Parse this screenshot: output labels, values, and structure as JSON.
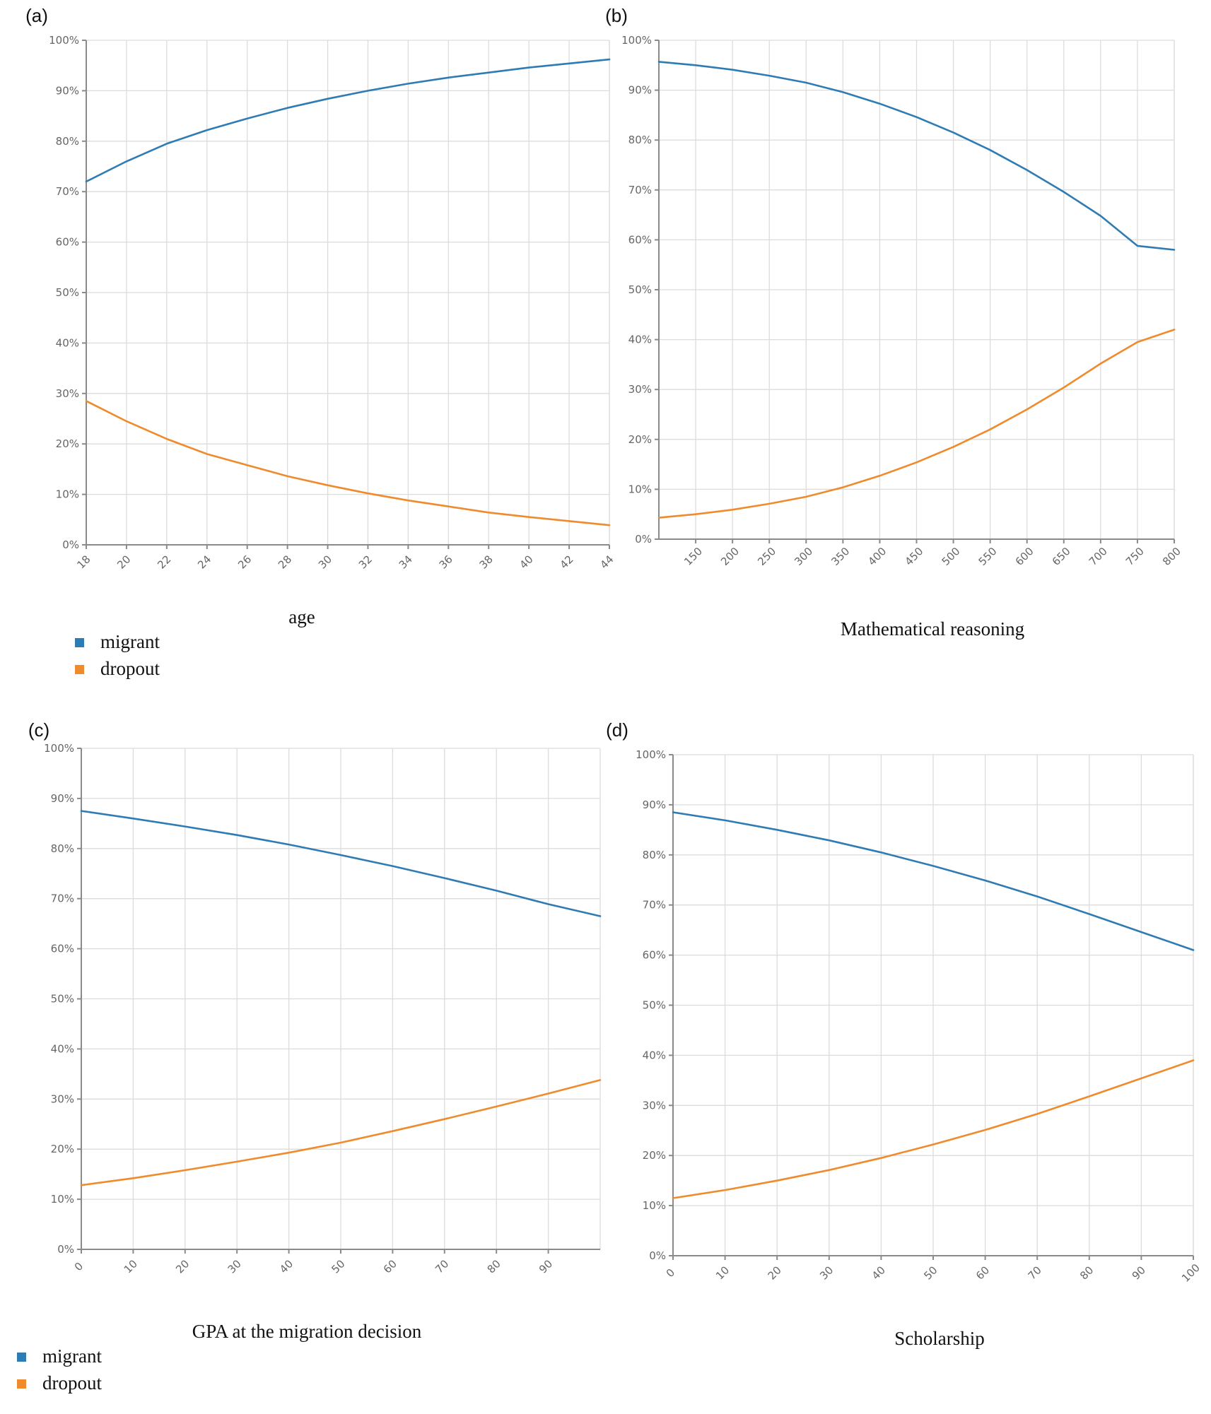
{
  "figure": {
    "legend_labels": [
      "migrant",
      "dropout"
    ]
  },
  "colors": {
    "migrant": "#2f7bb4",
    "dropout": "#ef8b2c",
    "grid": "#dcdcdc",
    "axis": "#8a8a8a"
  },
  "chart_data": [
    {
      "panel_label": "(a)",
      "type": "line",
      "xlabel": "age",
      "x_ticks": [
        "18",
        "20",
        "22",
        "24",
        "26",
        "28",
        "30",
        "32",
        "34",
        "36",
        "38",
        "40",
        "42",
        "44"
      ],
      "xlim": [
        18,
        44
      ],
      "y_ticks": [
        "0%",
        "10%",
        "20%",
        "30%",
        "40%",
        "50%",
        "60%",
        "70%",
        "80%",
        "90%",
        "100%"
      ],
      "ylim": [
        0,
        100
      ],
      "grid": true,
      "legend": "bottom-left",
      "series": [
        {
          "name": "migrant",
          "x": [
            18,
            20,
            22,
            24,
            26,
            28,
            30,
            32,
            34,
            36,
            38,
            40,
            42,
            44
          ],
          "y": [
            72,
            76,
            79.5,
            82.2,
            84.5,
            86.6,
            88.4,
            90,
            91.4,
            92.6,
            93.6,
            94.6,
            95.4,
            96.2
          ]
        },
        {
          "name": "dropout",
          "x": [
            18,
            20,
            22,
            24,
            26,
            28,
            30,
            32,
            34,
            36,
            38,
            40,
            42,
            44
          ],
          "y": [
            28.5,
            24.5,
            21,
            18,
            15.8,
            13.6,
            11.8,
            10.2,
            8.8,
            7.6,
            6.4,
            5.5,
            4.7,
            3.9
          ]
        }
      ]
    },
    {
      "panel_label": "(b)",
      "type": "line",
      "xlabel": "Mathematical  reasoning",
      "x_ticks": [
        "150",
        "200",
        "250",
        "300",
        "350",
        "400",
        "450",
        "500",
        "550",
        "600",
        "650",
        "700",
        "750",
        "800"
      ],
      "xlim": [
        100,
        800
      ],
      "y_ticks": [
        "0%",
        "10%",
        "20%",
        "30%",
        "40%",
        "50%",
        "60%",
        "70%",
        "80%",
        "90%",
        "100%"
      ],
      "ylim": [
        0,
        100
      ],
      "grid": true,
      "legend": "none",
      "series": [
        {
          "name": "migrant",
          "x": [
            100,
            150,
            200,
            250,
            300,
            350,
            400,
            450,
            500,
            550,
            600,
            650,
            700,
            750,
            800
          ],
          "y": [
            95.7,
            95,
            94.1,
            92.9,
            91.5,
            89.6,
            87.3,
            84.6,
            81.5,
            78,
            74,
            69.6,
            64.8,
            58.8,
            58
          ]
        },
        {
          "name": "dropout",
          "x": [
            100,
            150,
            200,
            250,
            300,
            350,
            400,
            450,
            500,
            550,
            600,
            650,
            700,
            750,
            800
          ],
          "y": [
            4.3,
            5,
            5.9,
            7.1,
            8.5,
            10.4,
            12.7,
            15.4,
            18.5,
            22,
            26,
            30.4,
            35.2,
            39.5,
            42
          ]
        }
      ]
    },
    {
      "panel_label": "(c)",
      "type": "line",
      "xlabel": "GPA at the migration  decision",
      "x_ticks": [
        "0",
        "10",
        "20",
        "30",
        "40",
        "50",
        "60",
        "70",
        "80",
        "90"
      ],
      "xlim": [
        0,
        100
      ],
      "y_ticks": [
        "0%",
        "10%",
        "20%",
        "30%",
        "40%",
        "50%",
        "60%",
        "70%",
        "80%",
        "90%",
        "100%"
      ],
      "ylim": [
        0,
        100
      ],
      "grid": true,
      "legend": "bottom-left",
      "series": [
        {
          "name": "migrant",
          "x": [
            0,
            10,
            20,
            30,
            40,
            50,
            60,
            70,
            80,
            90,
            100
          ],
          "y": [
            87.5,
            86,
            84.4,
            82.7,
            80.8,
            78.7,
            76.5,
            74.1,
            71.6,
            68.9,
            66.5
          ]
        },
        {
          "name": "dropout",
          "x": [
            0,
            10,
            20,
            30,
            40,
            50,
            60,
            70,
            80,
            90,
            100
          ],
          "y": [
            12.8,
            14.2,
            15.8,
            17.5,
            19.3,
            21.3,
            23.6,
            26,
            28.5,
            31.1,
            33.8
          ]
        }
      ]
    },
    {
      "panel_label": "(d)",
      "type": "line",
      "xlabel": "Scholarship",
      "x_ticks": [
        "0",
        "10",
        "20",
        "30",
        "40",
        "50",
        "60",
        "70",
        "80",
        "90",
        "100"
      ],
      "xlim": [
        0,
        100
      ],
      "y_ticks": [
        "0%",
        "10%",
        "20%",
        "30%",
        "40%",
        "50%",
        "60%",
        "70%",
        "80%",
        "90%",
        "100%"
      ],
      "ylim": [
        0,
        100
      ],
      "grid": true,
      "legend": "none",
      "series": [
        {
          "name": "migrant",
          "x": [
            0,
            10,
            20,
            30,
            40,
            50,
            60,
            70,
            80,
            90,
            100
          ],
          "y": [
            88.5,
            86.9,
            85,
            82.9,
            80.5,
            77.8,
            74.9,
            71.7,
            68.2,
            64.6,
            61
          ]
        },
        {
          "name": "dropout",
          "x": [
            0,
            10,
            20,
            30,
            40,
            50,
            60,
            70,
            80,
            90,
            100
          ],
          "y": [
            11.5,
            13.1,
            15,
            17.1,
            19.5,
            22.2,
            25.1,
            28.3,
            31.8,
            35.4,
            39
          ]
        }
      ]
    }
  ]
}
